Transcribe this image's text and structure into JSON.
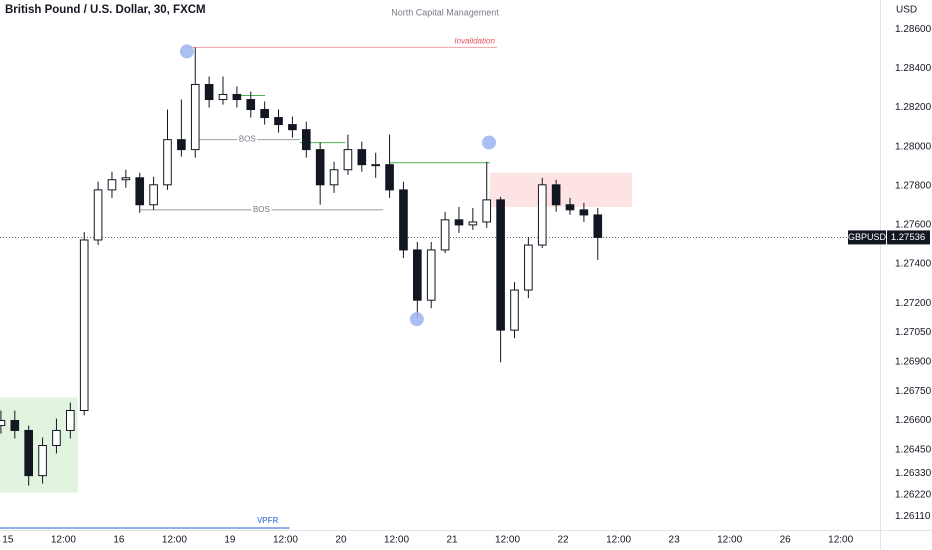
{
  "chart_data": {
    "type": "candlestick",
    "title": "British Pound / U.S. Dollar, 30, FXCM",
    "watermark": "North Capital Management",
    "y_axis_label": "USD",
    "symbol": "GBPUSD",
    "last_price": {
      "value": 1.27536,
      "label": "1.27536"
    },
    "up_color": "#ffffff",
    "down_color": "#131722",
    "x": [
      -1.5,
      1.5,
      4.5,
      7.5,
      10.5,
      13.5,
      16.5,
      19.5,
      22.5,
      25.5,
      28.5,
      31.5,
      34.5,
      37.5,
      40.5,
      43.5,
      46.5,
      49.5,
      52.5,
      55.5,
      58.5,
      61.5,
      64.5,
      67.5,
      70.5,
      73.5,
      76.5,
      79.5,
      82.5,
      85.5,
      88.5,
      91.5,
      94.5,
      97.5,
      100.5,
      103.5,
      106.5,
      109.5,
      112.5,
      115.5,
      118.5,
      121.5,
      124.5,
      127.5
    ],
    "open": [
      1.26574,
      1.266,
      1.26549,
      1.26318,
      1.26472,
      1.26549,
      1.26651,
      1.27523,
      1.27779,
      1.27831,
      1.27841,
      1.27703,
      1.27805,
      1.28036,
      1.27985,
      1.28318,
      1.28241,
      1.28267,
      1.28241,
      1.2819,
      1.28149,
      1.28113,
      1.28087,
      1.27985,
      1.27805,
      1.27882,
      1.27985,
      1.27908,
      1.27908,
      1.27779,
      1.27472,
      1.27215,
      1.27472,
      1.27626,
      1.276,
      1.27615,
      1.27728,
      1.27062,
      1.27267,
      1.27497,
      1.27805,
      1.27703,
      1.27677,
      1.27651
    ],
    "high": [
      1.26651,
      1.26651,
      1.26574,
      1.26513,
      1.2661,
      1.26692,
      1.27564,
      1.27821,
      1.27872,
      1.27882,
      1.27867,
      1.27846,
      1.2819,
      1.28241,
      1.28508,
      1.28359,
      1.28359,
      1.28308,
      1.28282,
      1.28231,
      1.2819,
      1.28154,
      1.28128,
      1.28021,
      1.27923,
      1.28062,
      1.28026,
      1.27969,
      1.28062,
      1.27821,
      1.27513,
      1.27513,
      1.27667,
      1.27692,
      1.27687,
      1.27923,
      1.27744,
      1.27308,
      1.27538,
      1.27841,
      1.27831,
      1.27738,
      1.27713,
      1.27687
    ],
    "low": [
      1.26533,
      1.26508,
      1.26267,
      1.26277,
      1.26431,
      1.26508,
      1.26626,
      1.27497,
      1.27738,
      1.2779,
      1.27662,
      1.27677,
      1.27779,
      1.27949,
      1.27944,
      1.282,
      1.28215,
      1.282,
      1.28149,
      1.28113,
      1.28072,
      1.28046,
      1.27944,
      1.27703,
      1.27764,
      1.27856,
      1.27872,
      1.27841,
      1.27738,
      1.27431,
      1.27123,
      1.27174,
      1.27456,
      1.27559,
      1.27574,
      1.27585,
      1.26897,
      1.27021,
      1.27226,
      1.27482,
      1.27667,
      1.27651,
      1.27615,
      1.27421
    ],
    "close": [
      1.266,
      1.26549,
      1.26318,
      1.26472,
      1.26549,
      1.26651,
      1.27523,
      1.27779,
      1.27831,
      1.27841,
      1.27703,
      1.27805,
      1.28036,
      1.27985,
      1.28318,
      1.28241,
      1.28267,
      1.28241,
      1.2819,
      1.28149,
      1.28113,
      1.28087,
      1.27985,
      1.27805,
      1.27882,
      1.27985,
      1.27908,
      1.27908,
      1.27779,
      1.27472,
      1.27215,
      1.27472,
      1.27626,
      1.276,
      1.27615,
      1.27728,
      1.27062,
      1.27267,
      1.27497,
      1.27805,
      1.27703,
      1.27677,
      1.27651,
      1.27536
    ],
    "xlim": [
      -1.7,
      188.5
    ],
    "ylim": [
      1.2604,
      1.2875
    ],
    "xticks": [
      {
        "value": 0,
        "label": "15"
      },
      {
        "value": 12,
        "label": "12:00"
      },
      {
        "value": 24,
        "label": "16"
      },
      {
        "value": 36,
        "label": "12:00"
      },
      {
        "value": 48,
        "label": "19"
      },
      {
        "value": 60,
        "label": "12:00"
      },
      {
        "value": 72,
        "label": "20"
      },
      {
        "value": 84,
        "label": "12:00"
      },
      {
        "value": 96,
        "label": "21"
      },
      {
        "value": 108,
        "label": "12:00"
      },
      {
        "value": 120,
        "label": "22"
      },
      {
        "value": 132,
        "label": "12:00"
      },
      {
        "value": 144,
        "label": "23"
      },
      {
        "value": 156,
        "label": "12:00"
      },
      {
        "value": 168,
        "label": "26"
      },
      {
        "value": 180,
        "label": "12:00"
      }
    ],
    "yticks": [
      {
        "value": 1.286,
        "label": "1.28600"
      },
      {
        "value": 1.284,
        "label": "1.28400"
      },
      {
        "value": 1.282,
        "label": "1.28200"
      },
      {
        "value": 1.28,
        "label": "1.28000"
      },
      {
        "value": 1.278,
        "label": "1.27800"
      },
      {
        "value": 1.276,
        "label": "1.27600"
      },
      {
        "value": 1.274,
        "label": "1.27400"
      },
      {
        "value": 1.272,
        "label": "1.27200"
      },
      {
        "value": 1.2705,
        "label": "1.27050"
      },
      {
        "value": 1.269,
        "label": "1.26900"
      },
      {
        "value": 1.2675,
        "label": "1.26750"
      },
      {
        "value": 1.266,
        "label": "1.26600"
      },
      {
        "value": 1.2645,
        "label": "1.26450"
      },
      {
        "value": 1.2633,
        "label": "1.26330"
      },
      {
        "value": 1.2622,
        "label": "1.26220"
      },
      {
        "value": 1.2611,
        "label": "1.26110"
      }
    ],
    "zones": [
      {
        "x": [
          -1.7,
          15.1
        ],
        "y": [
          1.26231,
          1.26718
        ],
        "color": "#e2f3df"
      },
      {
        "x": [
          104.2,
          134.9
        ],
        "y": [
          1.27692,
          1.27867
        ],
        "color": "#fde3e3"
      }
    ],
    "levels": [
      {
        "label": "Invalidation",
        "x": [
          38.7,
          105.7
        ],
        "y": 1.28508,
        "color": "#f2a0a8"
      },
      {
        "label": "BOS",
        "x": [
          40.4,
          63.1
        ],
        "y": 1.28036,
        "color": "#9e9e9e"
      },
      {
        "label": "BOS",
        "x": [
          28.5,
          81.1
        ],
        "y": 1.27677,
        "color": "#9e9e9e"
      },
      {
        "x": [
          50.2,
          55.6
        ],
        "y": 1.28262,
        "color": "#4caf50"
      },
      {
        "x": [
          63.1,
          72.9
        ],
        "y": 1.28021,
        "color": "#4caf50"
      },
      {
        "x": [
          82.6,
          104.2
        ],
        "y": 1.27918,
        "color": "#4caf50"
      }
    ],
    "markers": [
      {
        "x": 38.7,
        "y": 1.28487
      },
      {
        "x": 104.0,
        "y": 1.28021
      },
      {
        "x": 88.4,
        "y": 1.27118
      }
    ],
    "marker_color": "#9db4f0",
    "vpfr": {
      "label": "VPFR",
      "x": [
        -1.7,
        60.9
      ],
      "color": "#8fb0e8"
    }
  }
}
